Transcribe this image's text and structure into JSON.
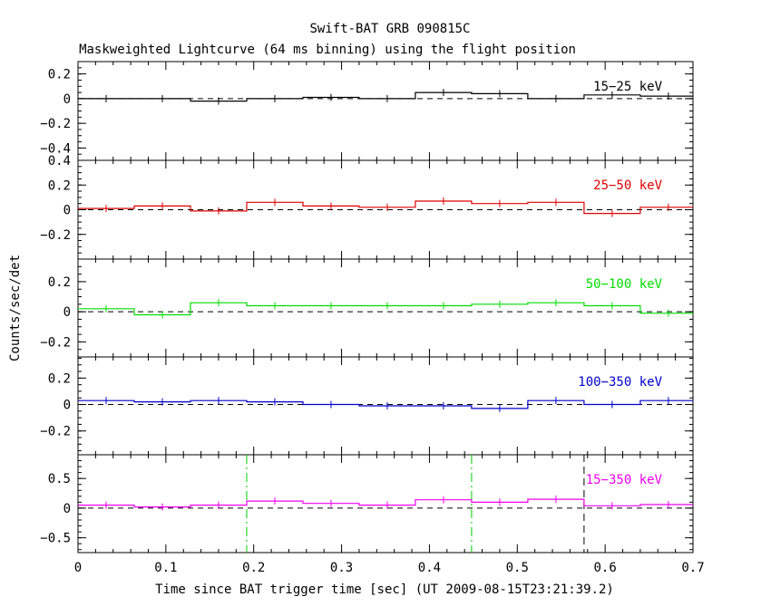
{
  "title": "Swift-BAT GRB 090815C",
  "subtitle": "Maskweighted Lightcurve (64 ms binning) using the flight position",
  "ylabel": "Counts/sec/det",
  "xlabel": "Time since BAT trigger time [sec] (UT 2009-08-15T23:21:39.2)",
  "chart_data": {
    "type": "line",
    "step": true,
    "xlim": [
      0,
      0.7
    ],
    "x_ticks": [
      "0",
      "0.1",
      "0.2",
      "0.3",
      "0.4",
      "0.5",
      "0.6",
      "0.7"
    ],
    "bin_edges": [
      0.0,
      0.064,
      0.128,
      0.192,
      0.256,
      0.32,
      0.384,
      0.448,
      0.512,
      0.576,
      0.64,
      0.704
    ],
    "panels": [
      {
        "label": "15−25 keV",
        "color": "#000000",
        "ylim": [
          -0.5,
          0.3
        ],
        "y_ticks": [
          "0.2",
          "0",
          "−0.2",
          "−0.4"
        ],
        "values": [
          0.0,
          0.0,
          -0.02,
          0.0,
          0.01,
          0.0,
          0.05,
          0.04,
          0.0,
          0.03,
          0.02
        ],
        "vlines": []
      },
      {
        "label": "25−50 keV",
        "color": "#dd0000",
        "ylim": [
          -0.4,
          0.4
        ],
        "y_ticks": [
          "0.4",
          "0.2",
          "0",
          "−0.2"
        ],
        "values": [
          0.01,
          0.03,
          -0.01,
          0.06,
          0.03,
          0.02,
          0.07,
          0.05,
          0.06,
          -0.03,
          0.02
        ],
        "vlines": []
      },
      {
        "label": "50−100 keV",
        "color": "#00dd00",
        "ylim": [
          -0.3,
          0.35
        ],
        "y_ticks": [
          "0.2",
          "0",
          "−0.2"
        ],
        "values": [
          0.02,
          -0.02,
          0.06,
          0.04,
          0.04,
          0.04,
          0.04,
          0.05,
          0.06,
          0.04,
          -0.01
        ],
        "vlines": []
      },
      {
        "label": "100−350 keV",
        "color": "#0000cc",
        "ylim": [
          -0.38,
          0.36
        ],
        "y_ticks": [
          "0.2",
          "0",
          "−0.2"
        ],
        "values": [
          0.03,
          0.02,
          0.03,
          0.02,
          0.0,
          -0.01,
          -0.01,
          -0.03,
          0.03,
          0.0,
          0.03
        ],
        "vlines": []
      },
      {
        "label": "15−350 keV",
        "color": "#ee00ee",
        "ylim": [
          -0.75,
          0.9
        ],
        "y_ticks": [
          "0.5",
          "0",
          "−0.5"
        ],
        "values": [
          0.05,
          0.02,
          0.05,
          0.12,
          0.08,
          0.05,
          0.14,
          0.1,
          0.15,
          0.04,
          0.06
        ],
        "vlines": [
          {
            "x": 0.192,
            "color": "#00cc00",
            "style": "dashdot"
          },
          {
            "x": 0.448,
            "color": "#00cc00",
            "style": "dashdot"
          },
          {
            "x": 0.576,
            "color": "#000000",
            "style": "dashed"
          }
        ]
      }
    ]
  }
}
